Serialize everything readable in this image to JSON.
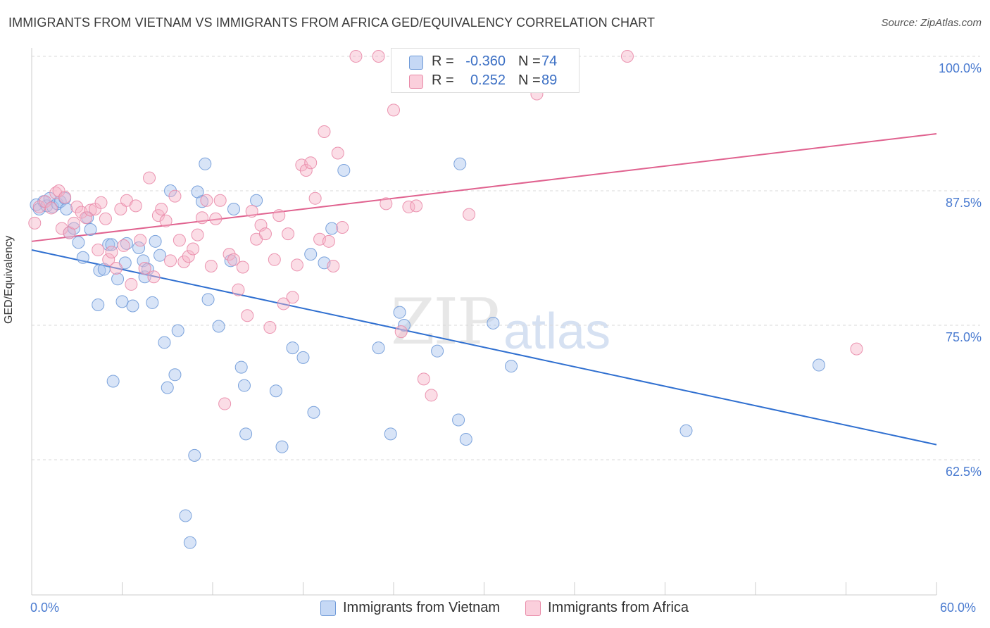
{
  "title": "IMMIGRANTS FROM VIETNAM VS IMMIGRANTS FROM AFRICA GED/EQUIVALENCY CORRELATION CHART",
  "source": "Source: ZipAtlas.com",
  "watermark": {
    "zip": "ZIP",
    "atlas": "atlas"
  },
  "legend": {
    "rows": [
      {
        "r_label": "R =",
        "r_value": "-0.360",
        "n_label": "N =",
        "n_value": "74",
        "color": "#a9c4ee"
      },
      {
        "r_label": "R =",
        "r_value": "0.252",
        "n_label": "N =",
        "n_value": "89",
        "color": "#f6b3c8"
      }
    ]
  },
  "bottom_legend": {
    "series1": "Immigrants from Vietnam",
    "series2": "Immigrants from Africa"
  },
  "colors": {
    "vietnam_fill": "#a9c4ee",
    "vietnam_stroke": "#6f9ad8",
    "vietnam_line": "#2f6fd0",
    "africa_fill": "#f6b3c8",
    "africa_stroke": "#e98aa8",
    "africa_line": "#e0628f",
    "grid": "#d9d9d9",
    "tick_text": "#4a7bd0"
  },
  "chart_data": {
    "type": "scatter",
    "title": "IMMIGRANTS FROM VIETNAM VS IMMIGRANTS FROM AFRICA GED/EQUIVALENCY CORRELATION CHART",
    "xlabel": "",
    "ylabel": "GED/Equivalency",
    "xlim": [
      0,
      60
    ],
    "ylim": [
      51.5,
      101.5
    ],
    "x_tick_labels": [
      "0.0%",
      "60.0%"
    ],
    "y_ticks": [
      62.5,
      75.0,
      87.5,
      100.0
    ],
    "y_tick_labels": [
      "62.5%",
      "75.0%",
      "87.5%",
      "100.0%"
    ],
    "grid": true,
    "legend_position": "top-center",
    "series": [
      {
        "name": "Immigrants from Vietnam",
        "trend": {
          "x": [
            0,
            60
          ],
          "y": [
            82.0,
            63.9
          ]
        },
        "points": [
          [
            0.3,
            86.2
          ],
          [
            0.5,
            85.8
          ],
          [
            0.8,
            86.5
          ],
          [
            1.0,
            86.1
          ],
          [
            1.2,
            86.8
          ],
          [
            1.4,
            86.0
          ],
          [
            1.7,
            86.3
          ],
          [
            1.9,
            86.5
          ],
          [
            2.2,
            86.8
          ],
          [
            2.3,
            85.8
          ],
          [
            2.5,
            83.6
          ],
          [
            2.8,
            84.0
          ],
          [
            3.1,
            82.7
          ],
          [
            3.4,
            81.3
          ],
          [
            3.7,
            85.0
          ],
          [
            3.9,
            83.9
          ],
          [
            4.4,
            76.9
          ],
          [
            4.5,
            80.1
          ],
          [
            4.8,
            80.2
          ],
          [
            5.1,
            82.5
          ],
          [
            5.3,
            82.5
          ],
          [
            5.4,
            69.8
          ],
          [
            5.7,
            79.3
          ],
          [
            6.0,
            77.2
          ],
          [
            6.2,
            80.8
          ],
          [
            6.3,
            82.6
          ],
          [
            6.7,
            76.8
          ],
          [
            7.1,
            82.2
          ],
          [
            7.4,
            81.0
          ],
          [
            7.5,
            79.5
          ],
          [
            7.7,
            80.2
          ],
          [
            8.0,
            77.1
          ],
          [
            8.2,
            82.8
          ],
          [
            8.5,
            81.5
          ],
          [
            8.8,
            73.4
          ],
          [
            9.0,
            69.2
          ],
          [
            9.2,
            87.5
          ],
          [
            9.5,
            70.4
          ],
          [
            9.7,
            74.5
          ],
          [
            10.2,
            57.3
          ],
          [
            10.5,
            54.8
          ],
          [
            10.8,
            62.9
          ],
          [
            11.0,
            87.4
          ],
          [
            11.3,
            86.5
          ],
          [
            11.5,
            90.0
          ],
          [
            11.7,
            77.4
          ],
          [
            12.4,
            74.9
          ],
          [
            13.2,
            81.0
          ],
          [
            13.4,
            85.8
          ],
          [
            13.9,
            71.1
          ],
          [
            14.1,
            69.4
          ],
          [
            14.2,
            64.9
          ],
          [
            14.9,
            86.6
          ],
          [
            16.2,
            68.9
          ],
          [
            16.6,
            63.7
          ],
          [
            17.3,
            72.9
          ],
          [
            18.0,
            72.0
          ],
          [
            18.5,
            81.6
          ],
          [
            18.7,
            66.9
          ],
          [
            19.4,
            80.8
          ],
          [
            19.9,
            84.0
          ],
          [
            20.7,
            89.4
          ],
          [
            23.0,
            72.9
          ],
          [
            23.8,
            64.9
          ],
          [
            24.4,
            76.2
          ],
          [
            24.7,
            75.0
          ],
          [
            26.9,
            72.6
          ],
          [
            28.3,
            66.2
          ],
          [
            28.4,
            90.0
          ],
          [
            28.8,
            64.4
          ],
          [
            30.6,
            75.2
          ],
          [
            31.8,
            71.2
          ],
          [
            43.4,
            65.2
          ],
          [
            52.2,
            71.3
          ]
        ]
      },
      {
        "name": "Immigrants from Africa",
        "trend": {
          "x": [
            0,
            60
          ],
          "y": [
            82.8,
            92.8
          ]
        },
        "points": [
          [
            0.2,
            84.5
          ],
          [
            0.5,
            86.0
          ],
          [
            0.9,
            86.5
          ],
          [
            1.3,
            85.9
          ],
          [
            1.6,
            87.3
          ],
          [
            1.8,
            87.5
          ],
          [
            2.0,
            84.0
          ],
          [
            2.2,
            86.9
          ],
          [
            2.5,
            83.6
          ],
          [
            2.8,
            84.5
          ],
          [
            3.0,
            86.0
          ],
          [
            3.3,
            85.5
          ],
          [
            3.6,
            85.0
          ],
          [
            3.9,
            85.7
          ],
          [
            4.2,
            85.8
          ],
          [
            4.4,
            82.0
          ],
          [
            4.6,
            86.4
          ],
          [
            4.9,
            84.9
          ],
          [
            5.1,
            81.1
          ],
          [
            5.3,
            81.8
          ],
          [
            5.6,
            80.3
          ],
          [
            5.9,
            85.8
          ],
          [
            6.1,
            82.4
          ],
          [
            6.3,
            86.6
          ],
          [
            6.6,
            78.8
          ],
          [
            6.9,
            86.1
          ],
          [
            7.2,
            82.9
          ],
          [
            7.5,
            80.3
          ],
          [
            7.8,
            88.7
          ],
          [
            8.1,
            79.5
          ],
          [
            8.4,
            85.2
          ],
          [
            8.6,
            85.8
          ],
          [
            8.9,
            84.7
          ],
          [
            9.2,
            81.0
          ],
          [
            9.5,
            87.0
          ],
          [
            9.8,
            82.9
          ],
          [
            10.1,
            80.9
          ],
          [
            10.4,
            81.4
          ],
          [
            10.7,
            82.1
          ],
          [
            11.0,
            83.4
          ],
          [
            11.3,
            85.0
          ],
          [
            11.6,
            86.6
          ],
          [
            11.9,
            80.5
          ],
          [
            12.2,
            84.9
          ],
          [
            12.5,
            86.6
          ],
          [
            12.8,
            67.7
          ],
          [
            13.1,
            81.6
          ],
          [
            13.4,
            81.1
          ],
          [
            13.7,
            78.3
          ],
          [
            14.0,
            80.4
          ],
          [
            14.3,
            75.9
          ],
          [
            14.6,
            85.6
          ],
          [
            14.9,
            83.0
          ],
          [
            15.2,
            84.3
          ],
          [
            15.5,
            83.5
          ],
          [
            15.8,
            74.8
          ],
          [
            16.1,
            81.1
          ],
          [
            16.4,
            85.2
          ],
          [
            16.7,
            77.0
          ],
          [
            17.0,
            83.5
          ],
          [
            17.3,
            77.6
          ],
          [
            17.6,
            80.6
          ],
          [
            17.9,
            89.9
          ],
          [
            18.2,
            89.4
          ],
          [
            18.5,
            90.1
          ],
          [
            18.8,
            86.8
          ],
          [
            19.1,
            83.0
          ],
          [
            19.4,
            93.0
          ],
          [
            19.7,
            82.8
          ],
          [
            20.0,
            80.5
          ],
          [
            20.3,
            91.0
          ],
          [
            20.6,
            84.1
          ],
          [
            21.5,
            100.0
          ],
          [
            23.0,
            100.0
          ],
          [
            23.5,
            86.3
          ],
          [
            24.0,
            95.0
          ],
          [
            24.5,
            74.4
          ],
          [
            25.0,
            86.0
          ],
          [
            25.5,
            86.1
          ],
          [
            26.0,
            70.0
          ],
          [
            26.5,
            68.5
          ],
          [
            27.0,
            100.0
          ],
          [
            29.0,
            85.3
          ],
          [
            30.5,
            100.0
          ],
          [
            32.0,
            100.0
          ],
          [
            33.5,
            96.5
          ],
          [
            35.5,
            100.0
          ],
          [
            39.5,
            100.0
          ],
          [
            54.7,
            72.8
          ]
        ]
      }
    ]
  }
}
